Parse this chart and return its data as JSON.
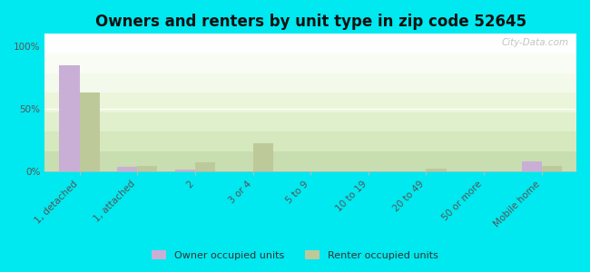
{
  "title": "Owners and renters by unit type in zip code 52645",
  "categories": [
    "1, detached",
    "1, attached",
    "2",
    "3 or 4",
    "5 to 9",
    "10 to 19",
    "20 to 49",
    "50 or more",
    "Mobile home"
  ],
  "owner_values": [
    85,
    3,
    1,
    0,
    0,
    0,
    0,
    0,
    8
  ],
  "renter_values": [
    63,
    4,
    7,
    22,
    0,
    0,
    2,
    0,
    4
  ],
  "owner_color": "#c9afd6",
  "renter_color": "#bec99a",
  "yticks": [
    0,
    50,
    100
  ],
  "ytick_labels": [
    "0%",
    "50%",
    "100%"
  ],
  "ylim": [
    0,
    110
  ],
  "outer_bg": "#00e8f0",
  "watermark": "City-Data.com",
  "bar_width": 0.35,
  "title_fontsize": 12,
  "tick_fontsize": 7.5,
  "grad_colors": [
    "#c8ddb0",
    "#d5e8be",
    "#e0efcc",
    "#ebf5da",
    "#f3f9eb",
    "#f9fcf4",
    "#fdfffe"
  ],
  "grid_color": "#ffffff",
  "spine_color": "#bbbbbb"
}
